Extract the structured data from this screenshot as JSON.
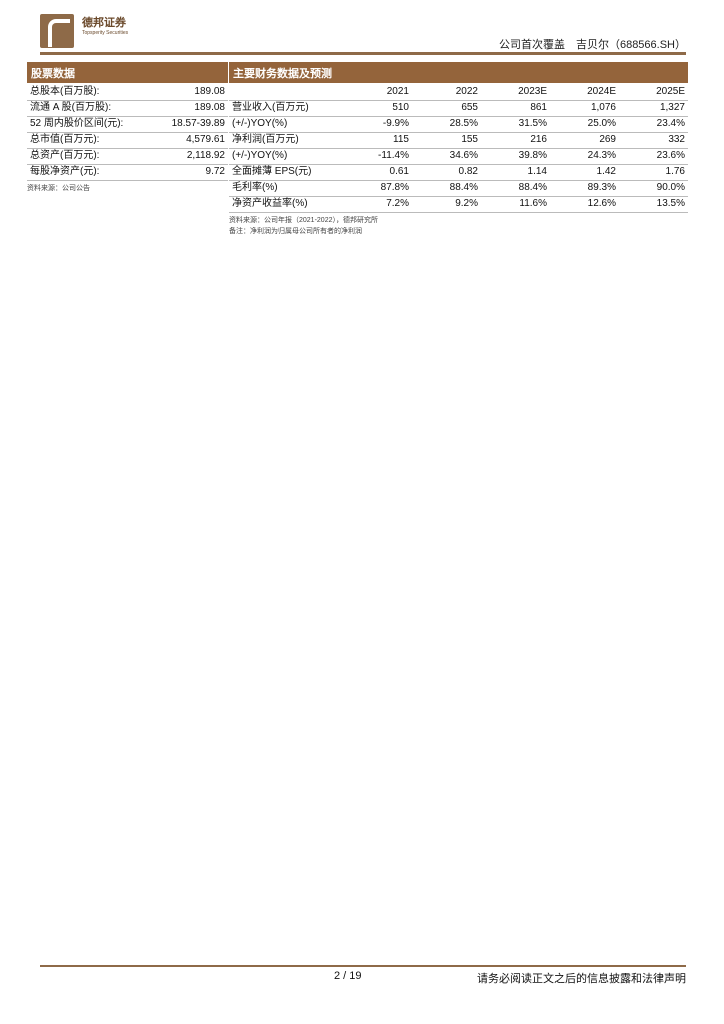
{
  "header": {
    "brand_cn": "德邦证券",
    "brand_en": "Topsperity Securities",
    "title": "公司首次覆盖　吉贝尔（688566.SH）"
  },
  "stock": {
    "title": "股票数据",
    "rows": [
      [
        "总股本(百万股):",
        "189.08"
      ],
      [
        "流通 A 股(百万股):",
        "189.08"
      ],
      [
        "52 周内股价区间(元):",
        "18.57-39.89"
      ],
      [
        "总市值(百万元):",
        "4,579.61"
      ],
      [
        "总资产(百万元):",
        "2,118.92"
      ],
      [
        "每股净资产(元):",
        "9.72"
      ]
    ],
    "source": "资料来源：公司公告"
  },
  "fin": {
    "title": "主要财务数据及预测",
    "years": [
      "2021",
      "2022",
      "2023E",
      "2024E",
      "2025E"
    ],
    "rows": [
      {
        "label": "营业收入(百万元)",
        "values": [
          "510",
          "655",
          "861",
          "1,076",
          "1,327"
        ]
      },
      {
        "label": "(+/-)YOY(%)",
        "values": [
          "-9.9%",
          "28.5%",
          "31.5%",
          "25.0%",
          "23.4%"
        ]
      },
      {
        "label": "净利润(百万元)",
        "values": [
          "115",
          "155",
          "216",
          "269",
          "332"
        ]
      },
      {
        "label": "(+/-)YOY(%)",
        "values": [
          "-11.4%",
          "34.6%",
          "39.8%",
          "24.3%",
          "23.6%"
        ]
      },
      {
        "label": "全面摊薄 EPS(元)",
        "values": [
          "0.61",
          "0.82",
          "1.14",
          "1.42",
          "1.76"
        ]
      },
      {
        "label": "毛利率(%)",
        "values": [
          "87.8%",
          "88.4%",
          "88.4%",
          "89.3%",
          "90.0%"
        ]
      },
      {
        "label": "净资产收益率(%)",
        "values": [
          "7.2%",
          "9.2%",
          "11.6%",
          "12.6%",
          "13.5%"
        ]
      }
    ],
    "source": "资料来源：公司年报（2021-2022），德邦研究所",
    "note": "备注：净利润为归属母公司所有者的净利润"
  },
  "footer": {
    "page": "2 / 19",
    "disclaimer": "请务必阅读正文之后的信息披露和法律声明"
  }
}
